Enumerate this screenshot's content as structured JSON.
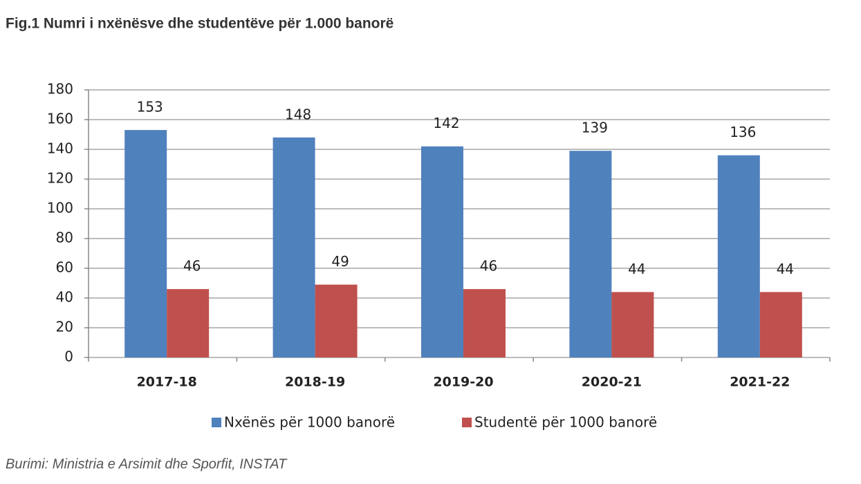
{
  "chart_data": {
    "type": "bar",
    "title": "Fig.1 Numri i nxënësve dhe studentëve për 1.000 banorë",
    "categories": [
      "2017-18",
      "2018-19",
      "2019-20",
      "2020-21",
      "2021-22"
    ],
    "series": [
      {
        "name": "Nxënës për 1000 banorë",
        "color": "#4f81bd",
        "values": [
          153,
          148,
          142,
          139,
          136
        ]
      },
      {
        "name": "Studentë për 1000 banorë",
        "color": "#c0504d",
        "values": [
          46,
          49,
          46,
          44,
          44
        ]
      }
    ],
    "ylim": [
      0,
      180
    ],
    "yticks": [
      0,
      20,
      40,
      60,
      80,
      100,
      120,
      140,
      160,
      180
    ],
    "grid": true,
    "legend": "bottom",
    "source": "Burimi: Ministria e Arsimit dhe Sporfit, INSTAT"
  }
}
